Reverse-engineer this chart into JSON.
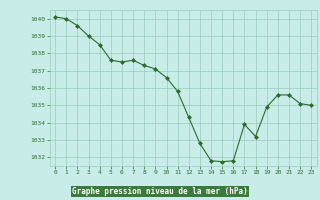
{
  "x": [
    0,
    1,
    2,
    3,
    4,
    5,
    6,
    7,
    8,
    9,
    10,
    11,
    12,
    13,
    14,
    15,
    16,
    17,
    18,
    19,
    20,
    21,
    22,
    23
  ],
  "y": [
    1040.1,
    1040.0,
    1039.6,
    1039.0,
    1038.5,
    1037.6,
    1037.5,
    1037.6,
    1037.3,
    1037.1,
    1036.6,
    1035.8,
    1034.3,
    1032.8,
    1031.8,
    1031.75,
    1031.8,
    1033.9,
    1033.2,
    1034.9,
    1035.6,
    1035.6,
    1035.1,
    1035.0
  ],
  "ylim": [
    1031.5,
    1040.5
  ],
  "yticks": [
    1032,
    1033,
    1034,
    1035,
    1036,
    1037,
    1038,
    1039,
    1040
  ],
  "xlabel": "Graphe pression niveau de la mer (hPa)",
  "line_color": "#2d6a2d",
  "marker_color": "#2d6a2d",
  "bg_color": "#c8ece8",
  "grid_color": "#99ccbb",
  "xlabel_color": "#2d6a2d",
  "tick_color": "#2d6a2d",
  "xlabel_bg": "#4a8a4a"
}
